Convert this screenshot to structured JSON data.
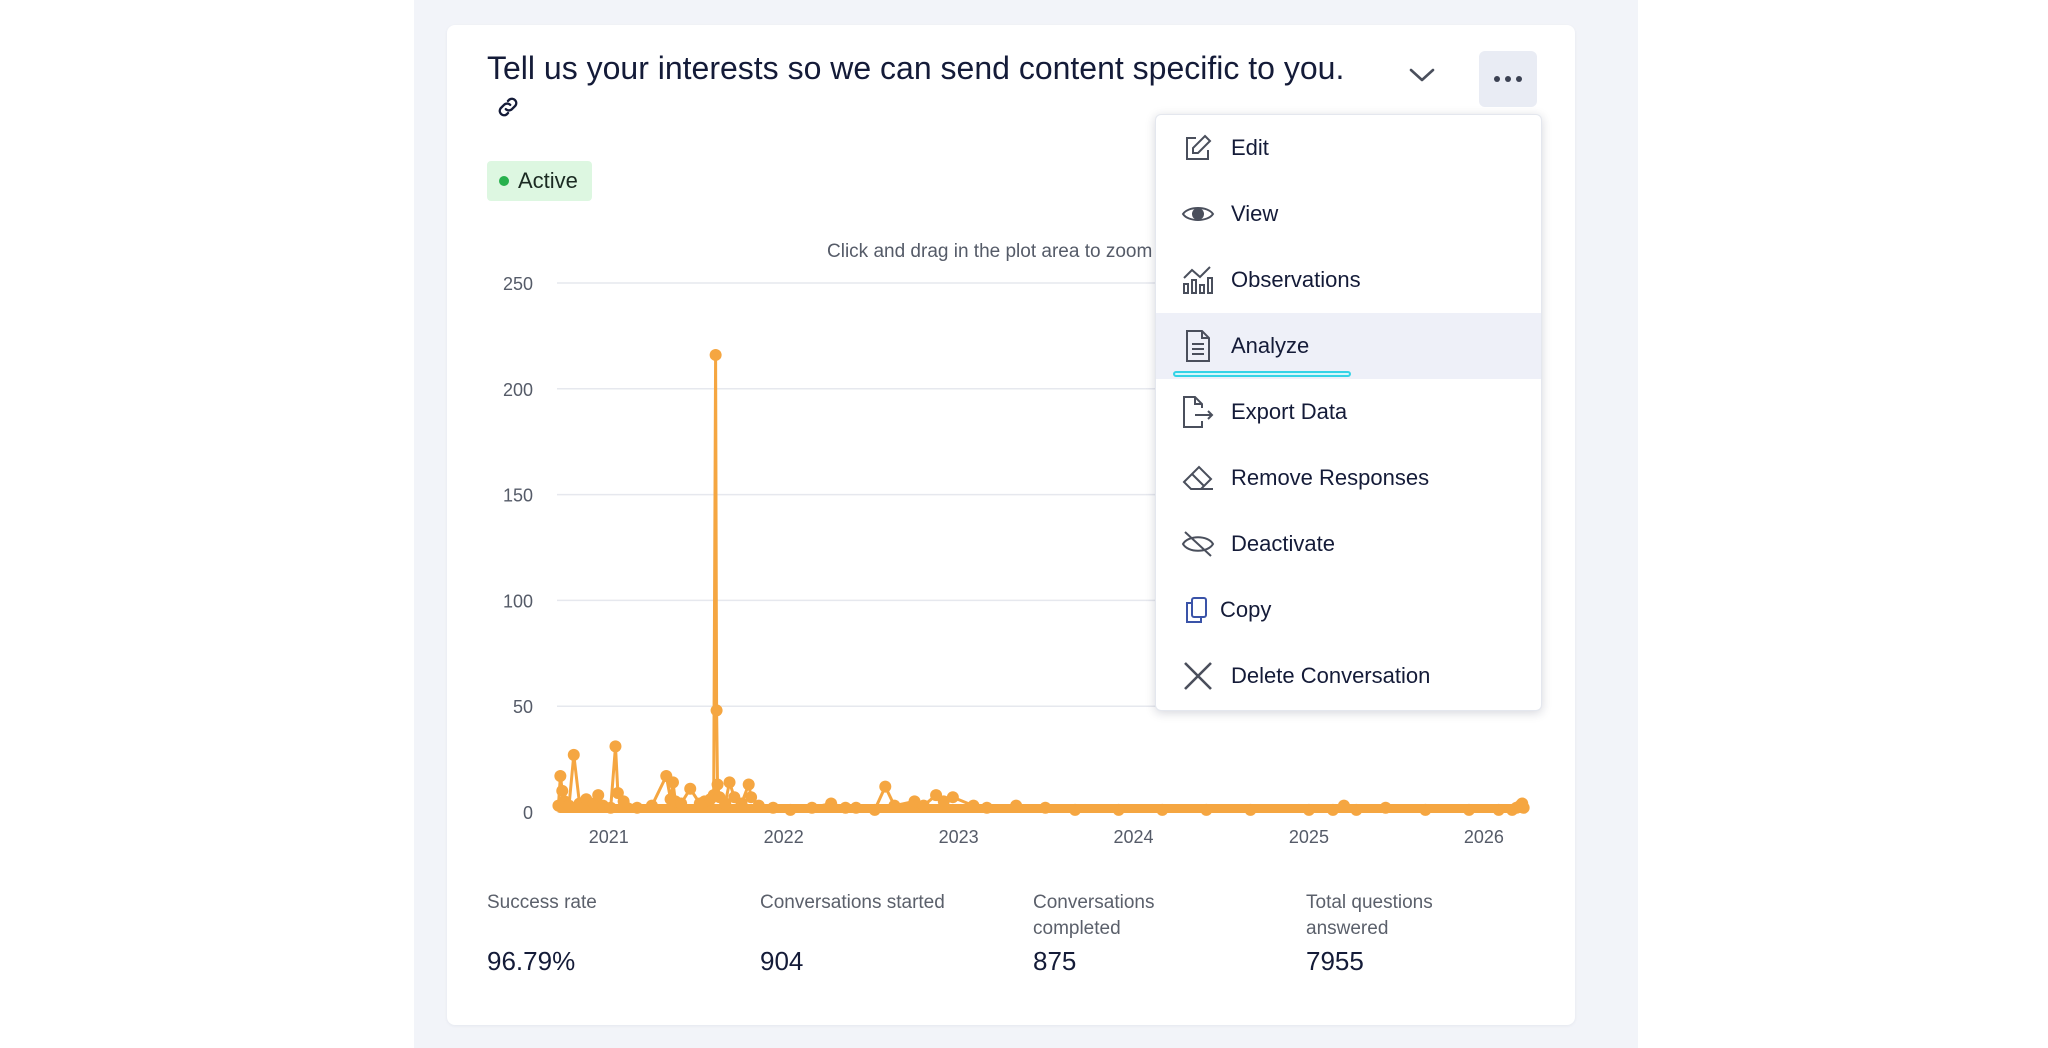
{
  "card": {
    "title": "Tell us your interests so we can send content specific to you.",
    "status": "Active",
    "chart_hint": "Click and drag in the plot area to zoom in"
  },
  "menu": {
    "items": [
      {
        "label": "Edit",
        "icon": "edit-icon"
      },
      {
        "label": "View",
        "icon": "eye-icon"
      },
      {
        "label": "Observations",
        "icon": "observations-chart-icon"
      },
      {
        "label": "Analyze",
        "icon": "document-icon"
      },
      {
        "label": "Export Data",
        "icon": "export-icon"
      },
      {
        "label": "Remove Responses",
        "icon": "eraser-icon"
      },
      {
        "label": "Deactivate",
        "icon": "deactivate-icon"
      },
      {
        "label": "Copy",
        "icon": "copy-icon"
      },
      {
        "label": "Delete Conversation",
        "icon": "close-icon"
      }
    ],
    "active_index": 3
  },
  "stats": [
    {
      "label": "Success rate",
      "value": "96.79%"
    },
    {
      "label": "Conversations started",
      "value": "904"
    },
    {
      "label": "Conversations completed",
      "value": "875"
    },
    {
      "label": "Total questions answered",
      "value": "7955"
    }
  ],
  "colors": {
    "series": "#f5a641",
    "grid": "#e6e8ee",
    "active_badge_bg": "#ddf7e1",
    "active_dot": "#27b14d",
    "focus_outline": "#35d3e6"
  },
  "chart_data": {
    "type": "line",
    "title": "",
    "xlabel": "",
    "ylabel": "",
    "ylim": [
      0,
      250
    ],
    "yticks": [
      0,
      50,
      100,
      150,
      200,
      250
    ],
    "xticks": [
      "2021",
      "2022",
      "2023",
      "2024",
      "2025",
      "2026"
    ],
    "xlim": [
      "2020-09-15",
      "2026-04-01"
    ],
    "grid": true,
    "legend": "none",
    "series": [
      {
        "points": [
          [
            "2020-09-18",
            3
          ],
          [
            "2020-09-22",
            17
          ],
          [
            "2020-09-26",
            10
          ],
          [
            "2020-10-01",
            5
          ],
          [
            "2020-10-10",
            3
          ],
          [
            "2020-10-20",
            27
          ],
          [
            "2020-11-01",
            4
          ],
          [
            "2020-11-15",
            6
          ],
          [
            "2020-12-01",
            4
          ],
          [
            "2020-12-10",
            8
          ],
          [
            "2020-12-20",
            3
          ],
          [
            "2021-01-05",
            2
          ],
          [
            "2021-01-15",
            31
          ],
          [
            "2021-01-20",
            9
          ],
          [
            "2021-02-01",
            5
          ],
          [
            "2021-03-01",
            2
          ],
          [
            "2021-04-01",
            3
          ],
          [
            "2021-05-01",
            17
          ],
          [
            "2021-05-10",
            6
          ],
          [
            "2021-05-15",
            14
          ],
          [
            "2021-05-20",
            5
          ],
          [
            "2021-06-01",
            4
          ],
          [
            "2021-06-20",
            11
          ],
          [
            "2021-07-10",
            4
          ],
          [
            "2021-07-20",
            5
          ],
          [
            "2021-08-01",
            6
          ],
          [
            "2021-08-08",
            8
          ],
          [
            "2021-08-12",
            216
          ],
          [
            "2021-08-14",
            48
          ],
          [
            "2021-08-16",
            13
          ],
          [
            "2021-08-20",
            7
          ],
          [
            "2021-09-01",
            4
          ],
          [
            "2021-09-10",
            14
          ],
          [
            "2021-09-20",
            7
          ],
          [
            "2021-10-05",
            4
          ],
          [
            "2021-10-20",
            13
          ],
          [
            "2021-10-25",
            7
          ],
          [
            "2021-11-10",
            3
          ],
          [
            "2021-12-10",
            2
          ],
          [
            "2022-01-15",
            1
          ],
          [
            "2022-03-01",
            2
          ],
          [
            "2022-04-10",
            4
          ],
          [
            "2022-05-10",
            2
          ],
          [
            "2022-06-01",
            2
          ],
          [
            "2022-07-10",
            1
          ],
          [
            "2022-08-01",
            12
          ],
          [
            "2022-08-20",
            3
          ],
          [
            "2022-10-01",
            5
          ],
          [
            "2022-10-20",
            3
          ],
          [
            "2022-11-15",
            8
          ],
          [
            "2022-12-01",
            5
          ],
          [
            "2022-12-20",
            7
          ],
          [
            "2023-02-01",
            3
          ],
          [
            "2023-03-01",
            2
          ],
          [
            "2023-05-01",
            3
          ],
          [
            "2023-07-01",
            2
          ],
          [
            "2023-09-01",
            1
          ],
          [
            "2023-12-01",
            1
          ],
          [
            "2024-03-01",
            1
          ],
          [
            "2024-06-01",
            1
          ],
          [
            "2024-09-01",
            1
          ],
          [
            "2025-01-01",
            1
          ],
          [
            "2025-02-20",
            1
          ],
          [
            "2025-03-15",
            3
          ],
          [
            "2025-04-10",
            1
          ],
          [
            "2025-06-10",
            2
          ],
          [
            "2025-09-01",
            1
          ],
          [
            "2025-12-01",
            1
          ],
          [
            "2026-02-01",
            1
          ],
          [
            "2026-03-01",
            1
          ],
          [
            "2026-03-10",
            2
          ],
          [
            "2026-03-18",
            3
          ],
          [
            "2026-03-22",
            4
          ],
          [
            "2026-03-25",
            2
          ]
        ]
      }
    ]
  }
}
